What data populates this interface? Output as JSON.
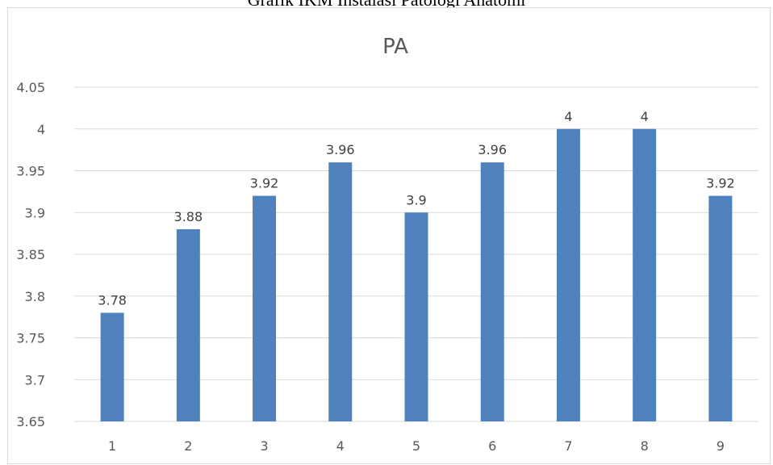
{
  "document": {
    "title": "Grafik IKM Instalasi Patologi Anatomi"
  },
  "chart_data": {
    "type": "bar",
    "title": "PA",
    "xlabel": "",
    "ylabel": "",
    "categories": [
      "1",
      "2",
      "3",
      "4",
      "5",
      "6",
      "7",
      "8",
      "9"
    ],
    "values": [
      3.78,
      3.88,
      3.92,
      3.96,
      3.9,
      3.96,
      4,
      4,
      3.92
    ],
    "data_labels": [
      "3.78",
      "3.88",
      "3.92",
      "3.96",
      "3.9",
      "3.96",
      "4",
      "4",
      "3.92"
    ],
    "ylim": [
      3.65,
      4.05
    ],
    "yticks": [
      "3.65",
      "3.7",
      "3.75",
      "3.8",
      "3.85",
      "3.9",
      "3.95",
      "4",
      "4.05"
    ],
    "grid": true,
    "legend": "none",
    "colors": {
      "bar": "#4f81bd",
      "grid": "#d9d9d9",
      "text": "#595959"
    }
  }
}
